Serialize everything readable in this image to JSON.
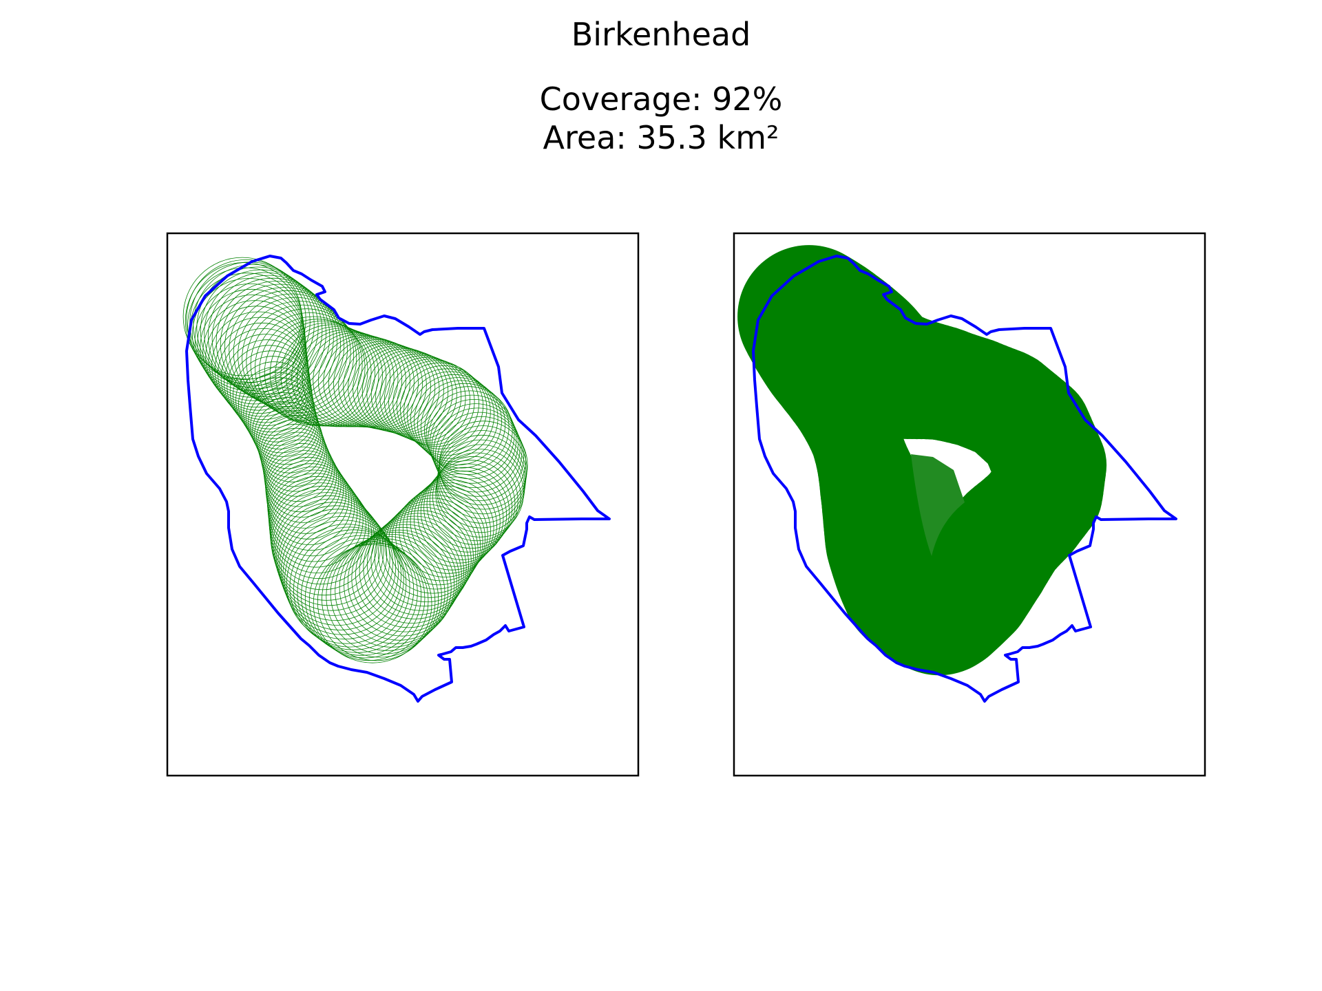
{
  "figure": {
    "title": "Birkenhead",
    "coverage_text": "Coverage: 92%",
    "area_text": "Area: 35.3 km²"
  },
  "colors": {
    "boundary": "#0000ff",
    "coverage": "#008000",
    "coverage_light": "#228b22",
    "frame": "#000000",
    "background": "#ffffff"
  },
  "panels": [
    {
      "id": "left",
      "style": "circle-outlines"
    },
    {
      "id": "right",
      "style": "filled-circles"
    }
  ]
}
